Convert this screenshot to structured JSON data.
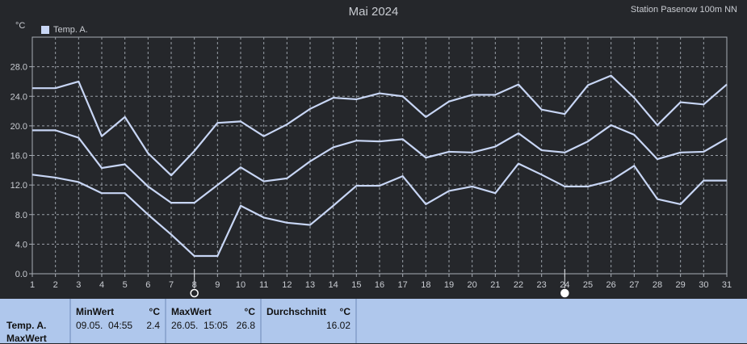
{
  "header": {
    "title": "Mai 2024",
    "station": "Station Pasenow 100m NN",
    "unit": "°C"
  },
  "legend": {
    "label": "Temp. A."
  },
  "colors": {
    "background": "#25272b",
    "grid": "#9aa0a8",
    "series": "#c8d6f5",
    "panel": "#afc7ec"
  },
  "chart_data": {
    "type": "line",
    "title": "Mai 2024",
    "ylabel": "°C",
    "xlabel": "",
    "ylim": [
      0,
      32
    ],
    "yticks": [
      "0.0",
      "4.0",
      "8.0",
      "12.0",
      "16.0",
      "20.0",
      "24.0",
      "28.0"
    ],
    "x": [
      1,
      2,
      3,
      4,
      5,
      6,
      7,
      8,
      9,
      10,
      11,
      12,
      13,
      14,
      15,
      16,
      17,
      18,
      19,
      20,
      21,
      22,
      23,
      24,
      25,
      26,
      27,
      28,
      29,
      30,
      31
    ],
    "grid": true,
    "legend_position": "top-left",
    "series": [
      {
        "name": "Temp. A.",
        "values": [
          25.1,
          25.1,
          26.0,
          18.6,
          21.2,
          16.3,
          13.3,
          16.6,
          20.4,
          20.6,
          18.6,
          20.2,
          22.3,
          23.8,
          23.6,
          24.4,
          24.0,
          21.2,
          23.3,
          24.2,
          24.2,
          25.6,
          22.2,
          21.6,
          25.5,
          26.8,
          23.8,
          20.1,
          23.2,
          22.9,
          25.6
        ]
      },
      {
        "values": [
          19.4,
          19.4,
          18.4,
          14.3,
          14.8,
          11.8,
          9.6,
          9.6,
          12.0,
          14.4,
          12.5,
          12.9,
          15.2,
          17.1,
          18.0,
          17.9,
          18.2,
          15.7,
          16.5,
          16.4,
          17.2,
          19.0,
          16.7,
          16.4,
          17.9,
          20.1,
          18.8,
          15.5,
          16.4,
          16.5,
          18.3
        ]
      },
      {
        "values": [
          13.4,
          13.0,
          12.4,
          10.9,
          10.9,
          8.0,
          5.3,
          2.4,
          2.4,
          9.2,
          7.6,
          6.9,
          6.6,
          9.2,
          11.9,
          11.9,
          13.2,
          9.4,
          11.2,
          11.8,
          10.9,
          14.9,
          13.4,
          11.8,
          11.8,
          12.6,
          14.6,
          10.1,
          9.4,
          12.6,
          12.6
        ]
      }
    ],
    "markers": [
      {
        "x": 8,
        "icon": "new-moon-icon"
      },
      {
        "x": 24,
        "icon": "full-moon-icon"
      }
    ]
  },
  "panel": {
    "row1": "Temp. A.",
    "row2": "MaxWert",
    "min": {
      "label": "MinWert",
      "unit": "°C",
      "date": "09.05.  04:55",
      "value": "2.4"
    },
    "max": {
      "label": "MaxWert",
      "unit": "°C",
      "date": "26.05.  15:05",
      "value": "26.8"
    },
    "avg": {
      "label": "Durchschnitt",
      "unit": "°C",
      "value": "16.02"
    }
  }
}
